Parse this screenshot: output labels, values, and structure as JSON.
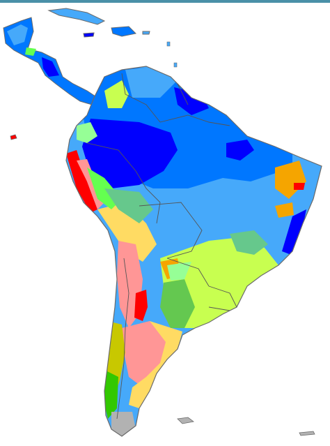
{
  "map": {
    "subject": "climate-zones-south-america",
    "labels": [],
    "colors": {
      "ocean": "#ffffff",
      "frame_top": "#4a90a8",
      "coast": "#6a6a6a",
      "border": "#555555",
      "tropical_rainforest": "#0000fe",
      "tropical_monsoon": "#0077ff",
      "tropical_savanna": "#46a9fa",
      "hot_desert": "#fe0000",
      "cold_desert": "#ff9696",
      "hot_steppe": "#f5a500",
      "cold_steppe": "#ffdb63",
      "humid_subtropical": "#c8ff50",
      "temperate_highland": "#64ff50",
      "oceanic": "#32c800",
      "subpolar_oceanic": "#96ff96",
      "mediterranean": "#c8c800",
      "tundra": "#b2b2b2",
      "monsoon_subtropical": "#66c88c"
    }
  }
}
